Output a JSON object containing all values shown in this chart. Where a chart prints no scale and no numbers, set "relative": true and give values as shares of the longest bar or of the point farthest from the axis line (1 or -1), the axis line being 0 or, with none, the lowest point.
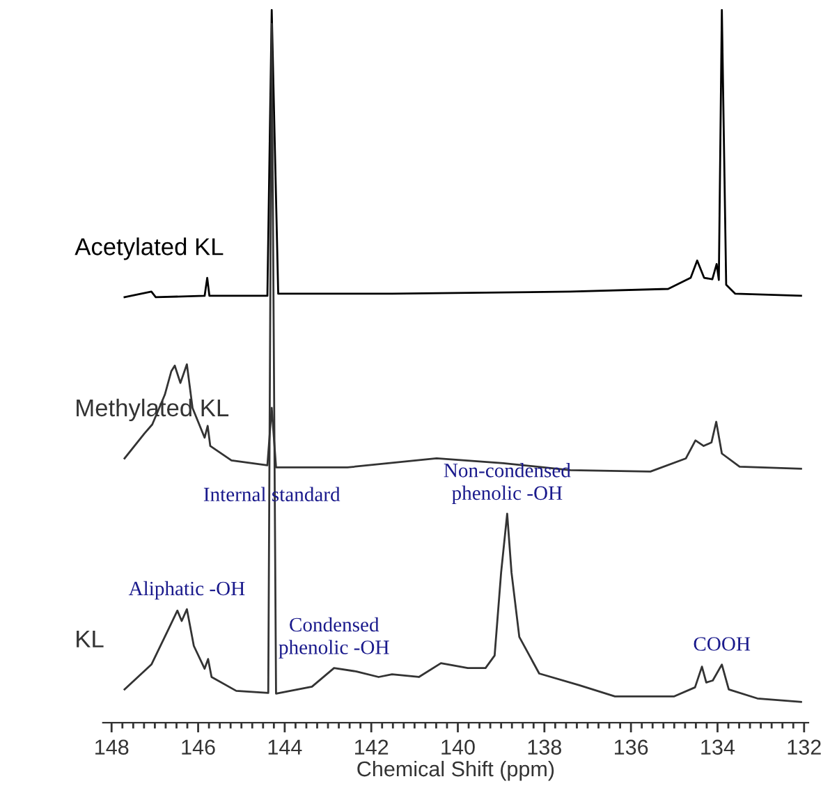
{
  "chart_data": {
    "type": "line",
    "relative": true,
    "xlabel": "Chemical Shift (ppm)",
    "xlim": [
      148.2,
      131.9
    ],
    "xticks": [
      148,
      146,
      144,
      142,
      140,
      138,
      136,
      134,
      132
    ],
    "grid": false,
    "series": [
      {
        "name": "Acetylated KL",
        "color": "#000000",
        "x": [
          147.7,
          147.08,
          146.98,
          145.85,
          145.79,
          145.74,
          144.4,
          144.3,
          144.15,
          141.52,
          137.4,
          135.14,
          134.62,
          134.47,
          134.31,
          134.12,
          134.02,
          133.97,
          133.9,
          133.8,
          133.59,
          132.07
        ],
        "values": [
          0.585,
          0.593,
          0.585,
          0.587,
          0.613,
          0.587,
          0.587,
          1,
          0.59,
          0.59,
          0.593,
          0.597,
          0.613,
          0.638,
          0.613,
          0.611,
          0.633,
          0.61,
          1,
          0.603,
          0.59,
          0.587
        ]
      },
      {
        "name": "Methylated KL",
        "color": "#333333",
        "x": [
          147.7,
          147.24,
          147.06,
          146.77,
          146.62,
          146.54,
          146.41,
          146.26,
          146.13,
          145.85,
          145.78,
          145.72,
          145.23,
          144.4,
          144.3,
          144.2,
          142.55,
          140.49,
          138.95,
          137.4,
          135.55,
          134.73,
          134.51,
          134.32,
          134.14,
          134.03,
          133.9,
          133.49,
          132.07
        ],
        "values": [
          0.352,
          0.388,
          0.401,
          0.444,
          0.478,
          0.486,
          0.461,
          0.488,
          0.425,
          0.382,
          0.399,
          0.37,
          0.349,
          0.342,
          0.425,
          0.339,
          0.339,
          0.352,
          0.345,
          0.335,
          0.333,
          0.352,
          0.378,
          0.37,
          0.375,
          0.405,
          0.359,
          0.34,
          0.337
        ]
      },
      {
        "name": "KL",
        "color": "#333333",
        "x": [
          147.7,
          147.08,
          146.67,
          146.48,
          146.38,
          146.26,
          146.1,
          145.85,
          145.77,
          145.69,
          145.12,
          144.38,
          144.3,
          144.2,
          143.37,
          142.86,
          142.34,
          141.83,
          141.52,
          140.9,
          140.39,
          139.77,
          139.36,
          139.15,
          139.0,
          138.86,
          138.76,
          138.58,
          138.12,
          137.19,
          136.37,
          135.0,
          134.52,
          134.36,
          134.26,
          134.11,
          133.9,
          133.74,
          133.08,
          132.07
        ],
        "values": [
          0.018,
          0.054,
          0.107,
          0.132,
          0.117,
          0.134,
          0.081,
          0.048,
          0.062,
          0.036,
          0.016,
          0.013,
          0.98,
          0.012,
          0.022,
          0.049,
          0.044,
          0.036,
          0.04,
          0.036,
          0.056,
          0.049,
          0.049,
          0.067,
          0.187,
          0.272,
          0.187,
          0.094,
          0.041,
          0.024,
          0.008,
          0.008,
          0.021,
          0.051,
          0.028,
          0.031,
          0.054,
          0.018,
          0.005,
          0
        ]
      }
    ],
    "annotations": [
      {
        "text": "Internal standard",
        "x": 144.3,
        "y": 0.27
      },
      {
        "text": "Aliphatic -OH",
        "x": 146.26,
        "y": 0.134
      },
      {
        "text": "Condensed\nphenolic -OH",
        "x": 142.86,
        "y": 0.049
      },
      {
        "text": "Non-condensed\nphenolic -OH",
        "x": 138.86,
        "y": 0.272
      },
      {
        "text": "COOH",
        "x": 133.9,
        "y": 0.054
      }
    ]
  }
}
